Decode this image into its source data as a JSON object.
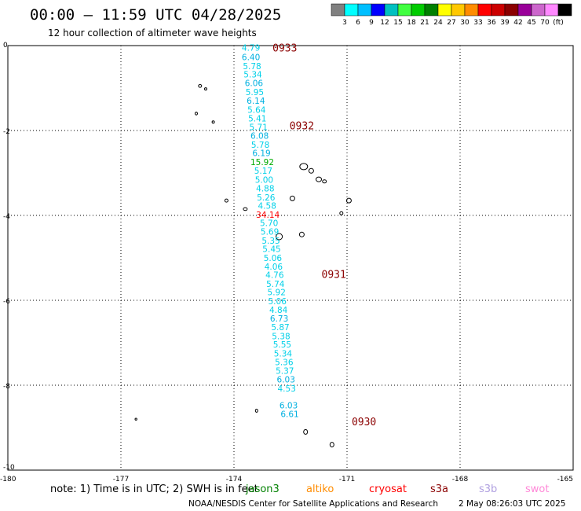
{
  "header": {
    "title": "00:00 – 11:59 UTC 04/28/2025",
    "subtitle": "12 hour collection of altimeter wave heights"
  },
  "legend": {
    "colors": [
      "#808080",
      "#00ffff",
      "#00bfff",
      "#0000ff",
      "#00c0c0",
      "#40ff40",
      "#00cc00",
      "#008000",
      "#ffff00",
      "#ffc800",
      "#ff8c00",
      "#ff0000",
      "#cc0000",
      "#8b0000",
      "#990099",
      "#cc66cc",
      "#ff88ff",
      "#000000"
    ],
    "labels": [
      "3",
      "6",
      "9",
      "12",
      "15",
      "18",
      "21",
      "24",
      "27",
      "30",
      "33",
      "36",
      "39",
      "42",
      "45",
      "70",
      "(ft)"
    ]
  },
  "chart_data": {
    "type": "scatter",
    "title": "00:00 – 11:59 UTC 04/28/2025",
    "xlim": [
      -180,
      -165
    ],
    "ylim": [
      -10,
      0
    ],
    "xticks": [
      "-180",
      "-177",
      "-174",
      "-171",
      "-168",
      "-165"
    ],
    "yticks": [
      "0",
      "-2",
      "-4",
      "-6",
      "-8",
      "-10"
    ],
    "units": "ft",
    "series": [
      {
        "name": "jason3",
        "points": [
          {
            "lon": -173.55,
            "lat": -0.05,
            "swh": "4.79"
          },
          {
            "lon": -173.55,
            "lat": -0.27,
            "swh": "6.40"
          },
          {
            "lon": -173.52,
            "lat": -0.48,
            "swh": "5.78"
          },
          {
            "lon": -173.5,
            "lat": -0.68,
            "swh": "5.34"
          },
          {
            "lon": -173.47,
            "lat": -0.88,
            "swh": "6.06"
          },
          {
            "lon": -173.45,
            "lat": -1.09,
            "swh": "5.95"
          },
          {
            "lon": -173.42,
            "lat": -1.3,
            "swh": "6.14"
          },
          {
            "lon": -173.4,
            "lat": -1.51,
            "swh": "5.64"
          },
          {
            "lon": -173.38,
            "lat": -1.71,
            "swh": "5.41"
          },
          {
            "lon": -173.35,
            "lat": -1.92,
            "swh": "5.71"
          },
          {
            "lon": -173.32,
            "lat": -2.12,
            "swh": "6.08"
          },
          {
            "lon": -173.3,
            "lat": -2.33,
            "swh": "5.78"
          },
          {
            "lon": -173.27,
            "lat": -2.53,
            "swh": "6.19"
          },
          {
            "lon": -173.25,
            "lat": -2.74,
            "swh": "15.92"
          },
          {
            "lon": -173.22,
            "lat": -2.94,
            "swh": "5.17"
          },
          {
            "lon": -173.2,
            "lat": -3.16,
            "swh": "5.00"
          },
          {
            "lon": -173.17,
            "lat": -3.36,
            "swh": "4.88"
          },
          {
            "lon": -173.15,
            "lat": -3.57,
            "swh": "5.26"
          },
          {
            "lon": -173.12,
            "lat": -3.77,
            "swh": "4.58"
          },
          {
            "lon": -173.1,
            "lat": -3.98,
            "swh": "34.14"
          },
          {
            "lon": -173.07,
            "lat": -4.18,
            "swh": "5.70"
          },
          {
            "lon": -173.05,
            "lat": -4.38,
            "swh": "5.69"
          },
          {
            "lon": -173.02,
            "lat": -4.59,
            "swh": "5.35"
          },
          {
            "lon": -173.0,
            "lat": -4.79,
            "swh": "5.45"
          },
          {
            "lon": -172.97,
            "lat": -5.0,
            "swh": "5.06"
          },
          {
            "lon": -172.95,
            "lat": -5.2,
            "swh": "4.06"
          },
          {
            "lon": -172.92,
            "lat": -5.4,
            "swh": "4.76"
          },
          {
            "lon": -172.9,
            "lat": -5.61,
            "swh": "5.74"
          },
          {
            "lon": -172.87,
            "lat": -5.81,
            "swh": "5.92"
          },
          {
            "lon": -172.85,
            "lat": -6.02,
            "swh": "5.06"
          },
          {
            "lon": -172.82,
            "lat": -6.22,
            "swh": "4.84"
          },
          {
            "lon": -172.8,
            "lat": -6.43,
            "swh": "6.73"
          },
          {
            "lon": -172.77,
            "lat": -6.63,
            "swh": "5.87"
          },
          {
            "lon": -172.75,
            "lat": -6.84,
            "swh": "5.38"
          },
          {
            "lon": -172.72,
            "lat": -7.04,
            "swh": "5.55"
          },
          {
            "lon": -172.7,
            "lat": -7.25,
            "swh": "5.34"
          },
          {
            "lon": -172.67,
            "lat": -7.45,
            "swh": "5.36"
          },
          {
            "lon": -172.65,
            "lat": -7.66,
            "swh": "5.37"
          },
          {
            "lon": -172.62,
            "lat": -7.86,
            "swh": "6.03"
          },
          {
            "lon": -172.6,
            "lat": -8.07,
            "swh": "4.53"
          },
          {
            "lon": -172.57,
            "lat": -8.27,
            "swh": ""
          },
          {
            "lon": -172.55,
            "lat": -8.47,
            "swh": "6.03"
          },
          {
            "lon": -172.52,
            "lat": -8.68,
            "swh": "6.61"
          }
        ]
      }
    ],
    "time_labels": [
      {
        "lon": -172.65,
        "lat": -0.05,
        "text": "0933"
      },
      {
        "lon": -172.2,
        "lat": -1.88,
        "text": "0932"
      },
      {
        "lon": -171.35,
        "lat": -5.38,
        "text": "0931"
      },
      {
        "lon": -170.55,
        "lat": -8.85,
        "text": "0930"
      }
    ],
    "ylabel": "",
    "xlabel": ""
  },
  "footer": {
    "note": "note: 1) Time is in UTC; 2) SWH is in feet",
    "satellites": [
      {
        "name": "jason3",
        "color": "#008000"
      },
      {
        "name": "altiko",
        "color": "#ff8c00"
      },
      {
        "name": "cryosat",
        "color": "#ff0000"
      },
      {
        "name": "s3a",
        "color": "#8b0000"
      },
      {
        "name": "s3b",
        "color": "#b0a0e0"
      },
      {
        "name": "swot",
        "color": "#ff88d8"
      }
    ],
    "credit": "NOAA/NESDIS Center for Satellite Applications and Research",
    "timestamp": "2 May 08:26:03 UTC 2025"
  }
}
